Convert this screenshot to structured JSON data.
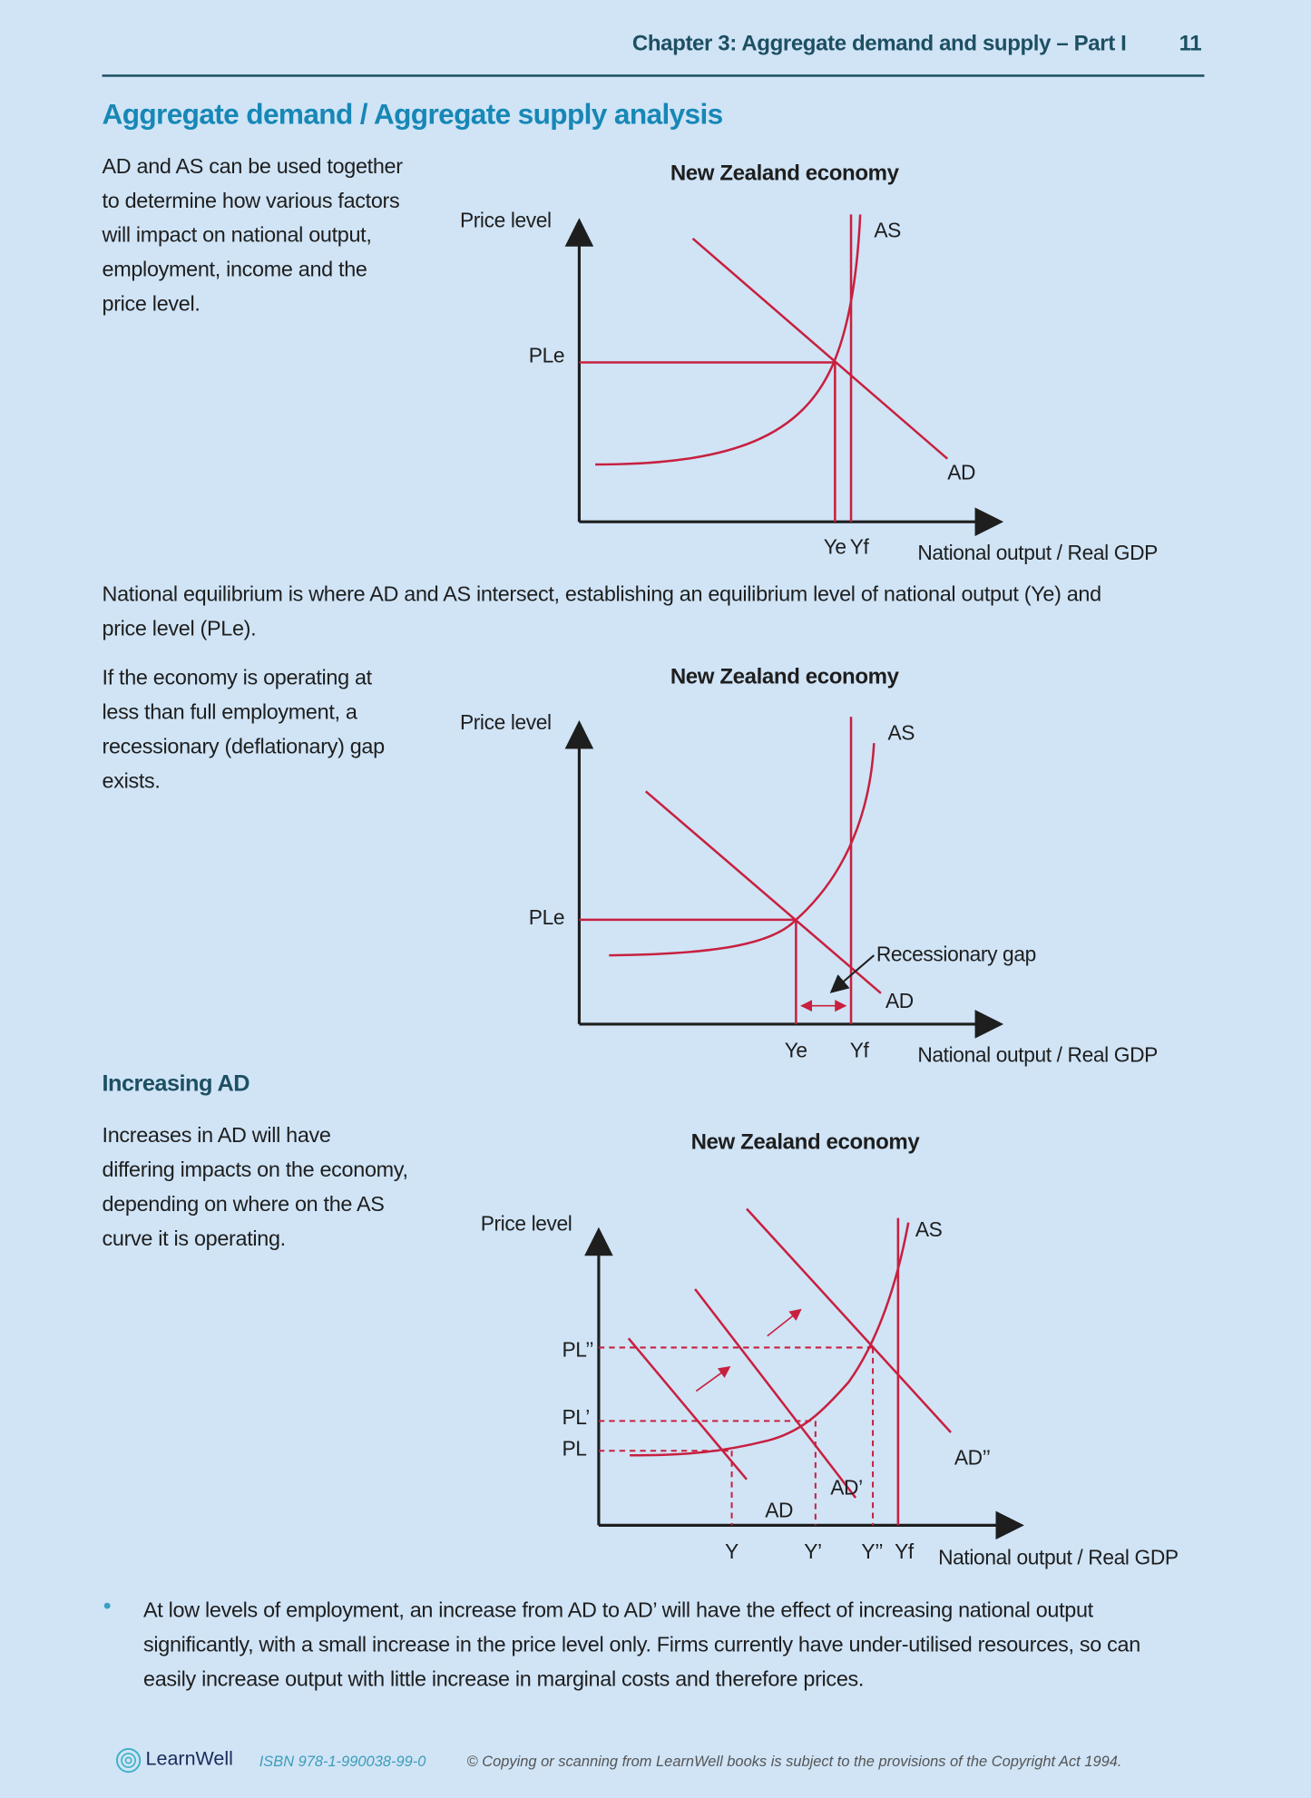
{
  "header": {
    "chapter": "Chapter 3: Aggregate demand and supply – Part I",
    "page_number": "11"
  },
  "title": "Aggregate demand / Aggregate supply analysis",
  "intro": [
    "AD and AS can be used together",
    "to determine how various factors",
    "will impact on national output,",
    "employment, income and the",
    "price level."
  ],
  "equilibrium_text": [
    "National equilibrium is where AD and AS intersect, establishing an equilibrium level of national output (Ye) and",
    "price level (PLe)."
  ],
  "recession_text": [
    "If the economy is operating at",
    "less than full employment, a",
    "recessionary (deflationary) gap",
    "exists."
  ],
  "increasing_ad": {
    "heading": "Increasing AD",
    "text": [
      "Increases in AD will have",
      "differing impacts on the economy,",
      "depending on where on the AS",
      "curve it is operating."
    ]
  },
  "bullets": [
    [
      "At low levels of employment, an increase from AD to AD’ will have the effect of increasing national output",
      "significantly, with a small increase in the price level only. Firms currently have under-utilised resources, so can",
      "easily increase output with little increase in marginal costs and therefore prices."
    ]
  ],
  "diagrams": [
    {
      "title": "New Zealand economy",
      "ylabel": "Price level",
      "xlabel": "National output / Real GDP",
      "labels": {
        "as": "AS",
        "ad": "AD",
        "ple": "PLe",
        "ye": "Ye",
        "yf": "Yf"
      }
    },
    {
      "title": "New Zealand economy",
      "ylabel": "Price level",
      "xlabel": "National output / Real GDP",
      "labels": {
        "as": "AS",
        "ad": "AD",
        "ple": "PLe",
        "ye": "Ye",
        "yf": "Yf",
        "gap": "Recessionary gap"
      }
    },
    {
      "title": "New Zealand economy",
      "ylabel": "Price level",
      "xlabel": "National output / Real GDP",
      "labels": {
        "as": "AS",
        "ad": "AD",
        "ad1": "AD’",
        "ad2": "AD’’",
        "pl": "PL",
        "pl1": "PL’",
        "pl2": "PL’’",
        "y": "Y",
        "y1": "Y’",
        "y2": "Y’’",
        "yf": "Yf"
      }
    }
  ],
  "footer": {
    "logo": "LearnWell",
    "isbn": "ISBN 978-1-990038-99-0",
    "copyright": "© Copying or scanning from LearnWell books is subject to the provisions of the Copyright Act 1994."
  },
  "colors": {
    "background": "#d0e4f6",
    "curve": "#c8203f",
    "heading": "#1787b6",
    "header": "#1d4f62"
  }
}
